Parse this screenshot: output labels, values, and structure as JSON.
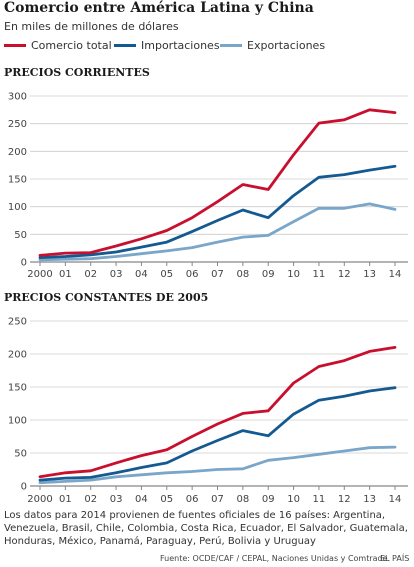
{
  "header": {
    "title": "Comercio entre América Latina y China",
    "subtitle": "En miles de millones de dólares"
  },
  "legend": [
    {
      "label": "Comercio total",
      "color": "#c8102e"
    },
    {
      "label": "Importaciones",
      "color": "#14598f"
    },
    {
      "label": "Exportaciones",
      "color": "#7aa6c9"
    }
  ],
  "colors": {
    "total": "#c8102e",
    "imports": "#14598f",
    "exports": "#7aa6c9",
    "grid": "#cccccc",
    "axis": "#888888"
  },
  "chart_data": [
    {
      "type": "line",
      "title": "PRECIOS CORRIENTES",
      "x": [
        "2000",
        "01",
        "02",
        "03",
        "04",
        "05",
        "06",
        "07",
        "08",
        "09",
        "10",
        "11",
        "12",
        "13",
        "14"
      ],
      "ylim": [
        0,
        300
      ],
      "yticks": [
        0,
        50,
        100,
        150,
        200,
        250,
        300
      ],
      "grid": true,
      "series": [
        {
          "name": "Comercio total",
          "color": "#c8102e",
          "values": [
            12,
            16,
            17,
            29,
            42,
            57,
            80,
            109,
            140,
            131,
            194,
            251,
            257,
            275,
            270
          ]
        },
        {
          "name": "Importaciones",
          "color": "#14598f",
          "values": [
            8,
            10,
            13,
            18,
            27,
            36,
            55,
            75,
            94,
            80,
            120,
            153,
            158,
            166,
            173
          ]
        },
        {
          "name": "Exportaciones",
          "color": "#7aa6c9",
          "values": [
            4,
            5,
            6,
            10,
            15,
            20,
            26,
            36,
            45,
            48,
            73,
            97,
            97,
            105,
            95
          ]
        }
      ]
    },
    {
      "type": "line",
      "title": "PRECIOS CONSTANTES DE 2005",
      "x": [
        "2000",
        "01",
        "02",
        "03",
        "04",
        "05",
        "06",
        "07",
        "08",
        "09",
        "10",
        "11",
        "12",
        "13",
        "14"
      ],
      "ylim": [
        0,
        250
      ],
      "yticks": [
        0,
        50,
        100,
        150,
        200,
        250
      ],
      "grid": true,
      "series": [
        {
          "name": "Comercio total",
          "color": "#c8102e",
          "values": [
            14,
            20,
            23,
            35,
            46,
            55,
            75,
            94,
            110,
            114,
            156,
            181,
            190,
            204,
            210
          ]
        },
        {
          "name": "Importaciones",
          "color": "#14598f",
          "values": [
            9,
            12,
            13,
            20,
            28,
            35,
            53,
            69,
            84,
            76,
            109,
            130,
            136,
            144,
            149
          ]
        },
        {
          "name": "Exportaciones",
          "color": "#7aa6c9",
          "values": [
            5,
            7,
            9,
            14,
            17,
            20,
            22,
            25,
            26,
            39,
            43,
            48,
            53,
            58,
            59
          ]
        }
      ]
    }
  ],
  "footnote": "Los datos para 2014 provienen de fuentes oficiales de 16 países: Argentina, Venezuela, Brasil, Chile, Colombia, Costa Rica, Ecuador, El Salvador, Guatemala, Honduras, México, Panamá, Paraguay, Perú, Bolivia y Uruguay",
  "source": "Fuente: OCDE/CAF / CEPAL, Naciones Unidas y Comtrade.",
  "brand": "EL PAÍS"
}
